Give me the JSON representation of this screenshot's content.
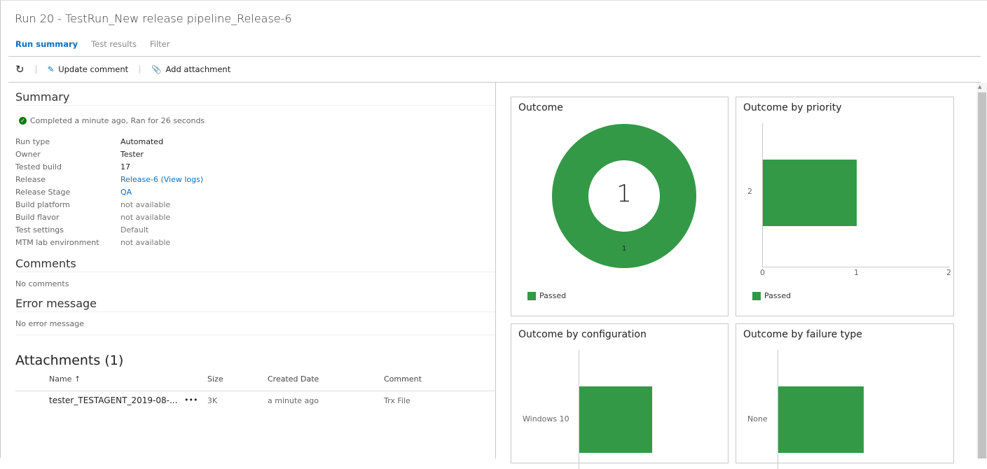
{
  "header": {
    "title": "Run 20 - TestRun_New release pipeline_Release-6",
    "tabs": [
      {
        "label": "Run summary",
        "active": true
      },
      {
        "label": "Test results"
      },
      {
        "label": "Filter"
      }
    ]
  },
  "toolbar": {
    "refresh_icon": "refresh-icon",
    "update_comment": "Update comment",
    "add_attachment": "Add attachment"
  },
  "summary": {
    "heading": "Summary",
    "status": "Completed a minute ago, Ran for 26 seconds",
    "fields": [
      {
        "k": "Run type",
        "v": "Automated"
      },
      {
        "k": "Owner",
        "v": "Tester"
      },
      {
        "k": "Tested build",
        "v": "17"
      },
      {
        "k": "Release",
        "v": "Release-6 (View logs)"
      },
      {
        "k": "Release Stage",
        "v": "QA"
      },
      {
        "k": "Build platform",
        "v": "not available"
      },
      {
        "k": "Build flavor",
        "v": "not available"
      },
      {
        "k": "Test settings",
        "v": "Default"
      },
      {
        "k": "MTM lab environment",
        "v": "not available"
      }
    ]
  },
  "comments": {
    "heading": "Comments",
    "text": "No comments"
  },
  "error": {
    "heading": "Error message",
    "text": "No error message"
  },
  "attachments": {
    "heading": "Attachments (1)",
    "columns": [
      "Name ↑",
      "Size",
      "Created Date",
      "Comment"
    ],
    "rows": [
      {
        "name": "tester_TESTAGENT_2019-08-...",
        "more": "•••",
        "size": "3K",
        "date": "a minute ago",
        "comment": "Trx File"
      }
    ]
  },
  "colors": {
    "passed": "#339947",
    "accent": "#106ebe"
  },
  "chart_data": [
    {
      "type": "pie",
      "title": "Outcome",
      "donut": true,
      "center_label": "1",
      "slices": [
        {
          "label": "Passed",
          "value": 1,
          "data_label": "1"
        }
      ],
      "legend": [
        "Passed"
      ]
    },
    {
      "type": "bar",
      "orientation": "horizontal",
      "title": "Outcome by priority",
      "categories": [
        "2"
      ],
      "series": [
        {
          "name": "Passed",
          "values": [
            1
          ]
        }
      ],
      "xlim": [
        0,
        2
      ],
      "xticks": [
        "0",
        "1",
        "2"
      ],
      "legend": [
        "Passed"
      ]
    },
    {
      "type": "bar",
      "orientation": "horizontal",
      "title": "Outcome by configuration",
      "categories": [
        "Windows 10"
      ],
      "series": [
        {
          "values": [
            1
          ]
        }
      ]
    },
    {
      "type": "bar",
      "orientation": "horizontal",
      "title": "Outcome by failure type",
      "categories": [
        "None"
      ],
      "series": [
        {
          "values": [
            1
          ]
        }
      ]
    }
  ]
}
